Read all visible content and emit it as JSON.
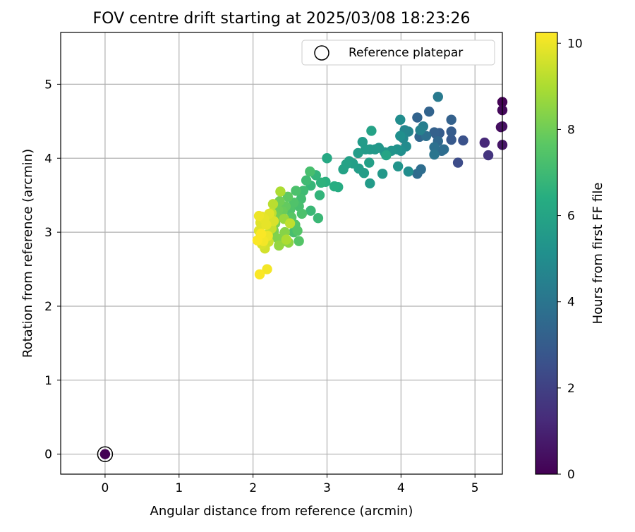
{
  "chart_data": {
    "type": "scatter",
    "title": "FOV centre drift starting at 2025/03/08 18:23:26",
    "xlabel": "Angular distance from reference (arcmin)",
    "ylabel": "Rotation from reference (arcmin)",
    "xlim": [
      -0.6,
      5.37
    ],
    "ylim": [
      -0.27,
      5.7
    ],
    "xticks": [
      "0",
      "1",
      "2",
      "3",
      "4",
      "5"
    ],
    "yticks": [
      "0",
      "1",
      "2",
      "3",
      "4",
      "5"
    ],
    "grid": true,
    "legend": {
      "position": "top-right",
      "label": "Reference platepar"
    },
    "reference_point": {
      "x": 0,
      "y": 0,
      "c": 0
    },
    "colorbar": {
      "label": "Hours from first FF file",
      "range": [
        0,
        10.25
      ],
      "ticks": [
        "0",
        "2",
        "4",
        "6",
        "8",
        "10"
      ],
      "colormap": "viridis"
    },
    "points": [
      [
        5.37,
        4.76,
        0.05
      ],
      [
        5.37,
        4.65,
        0.2
      ],
      [
        5.35,
        4.42,
        0.35
      ],
      [
        5.37,
        4.43,
        0.45
      ],
      [
        5.37,
        4.18,
        0.6
      ],
      [
        5.13,
        4.21,
        1.2
      ],
      [
        5.18,
        4.04,
        1.6
      ],
      [
        4.77,
        3.94,
        2.4
      ],
      [
        4.84,
        4.24,
        2.6
      ],
      [
        4.68,
        4.25,
        2.9
      ],
      [
        4.68,
        4.36,
        3.0
      ],
      [
        4.68,
        4.52,
        3.2
      ],
      [
        4.52,
        4.34,
        3.0
      ],
      [
        4.48,
        4.32,
        3.1
      ],
      [
        4.45,
        4.35,
        3.2
      ],
      [
        4.38,
        4.63,
        3.3
      ],
      [
        4.22,
        4.55,
        3.3
      ],
      [
        4.25,
        4.29,
        3.4
      ],
      [
        4.5,
        4.23,
        3.5
      ],
      [
        4.55,
        4.1,
        3.6
      ],
      [
        4.58,
        4.12,
        3.7
      ],
      [
        4.22,
        3.79,
        3.6
      ],
      [
        4.27,
        3.85,
        3.7
      ],
      [
        4.34,
        4.3,
        3.8
      ],
      [
        4.45,
        4.15,
        3.8
      ],
      [
        4.45,
        4.05,
        4.0
      ],
      [
        4.5,
        4.83,
        4.2
      ],
      [
        4.3,
        4.43,
        4.4
      ],
      [
        4.26,
        4.38,
        4.5
      ],
      [
        4.1,
        4.36,
        4.6
      ],
      [
        4.05,
        4.38,
        4.7
      ],
      [
        4.03,
        4.27,
        4.8
      ],
      [
        4.07,
        4.16,
        4.9
      ],
      [
        4.1,
        3.82,
        5.0
      ],
      [
        3.99,
        4.52,
        5.0
      ],
      [
        3.99,
        4.3,
        5.1
      ],
      [
        4.0,
        4.1,
        5.1
      ],
      [
        3.95,
        4.12,
        5.2
      ],
      [
        3.96,
        3.89,
        5.3
      ],
      [
        3.87,
        4.1,
        5.3
      ],
      [
        3.78,
        4.08,
        5.4
      ],
      [
        3.7,
        4.14,
        5.4
      ],
      [
        3.65,
        4.12,
        5.5
      ],
      [
        3.58,
        4.12,
        5.5
      ],
      [
        3.52,
        4.12,
        5.6
      ],
      [
        3.48,
        4.22,
        5.6
      ],
      [
        3.42,
        4.07,
        5.7
      ],
      [
        3.43,
        3.86,
        5.7
      ],
      [
        3.35,
        3.93,
        5.8
      ],
      [
        3.3,
        3.96,
        5.8
      ],
      [
        3.26,
        3.92,
        5.9
      ],
      [
        3.22,
        3.85,
        5.9
      ],
      [
        3.6,
        4.37,
        5.9
      ],
      [
        3.58,
        3.66,
        5.6
      ],
      [
        3.75,
        3.79,
        5.5
      ],
      [
        3.8,
        4.04,
        6.0
      ],
      [
        3.57,
        3.94,
        5.8
      ],
      [
        3.5,
        3.8,
        5.7
      ],
      [
        3.0,
        4.0,
        6.2
      ],
      [
        3.15,
        3.61,
        6.3
      ],
      [
        3.1,
        3.62,
        6.4
      ],
      [
        2.98,
        3.68,
        6.5
      ],
      [
        2.92,
        3.67,
        6.6
      ],
      [
        2.9,
        3.5,
        6.7
      ],
      [
        2.85,
        3.77,
        6.7
      ],
      [
        2.78,
        3.63,
        6.8
      ],
      [
        2.78,
        3.29,
        6.9
      ],
      [
        2.88,
        3.19,
        6.9
      ],
      [
        2.77,
        3.82,
        7.2
      ],
      [
        2.72,
        3.7,
        7.0
      ],
      [
        2.68,
        3.56,
        7.0
      ],
      [
        2.65,
        3.45,
        7.1
      ],
      [
        2.62,
        3.35,
        7.2
      ],
      [
        2.66,
        3.25,
        7.3
      ],
      [
        2.58,
        3.56,
        7.3
      ],
      [
        2.55,
        3.4,
        7.4
      ],
      [
        2.5,
        3.3,
        7.4
      ],
      [
        2.57,
        3.1,
        7.5
      ],
      [
        2.6,
        3.02,
        7.5
      ],
      [
        2.62,
        2.88,
        7.5
      ],
      [
        2.52,
        3.2,
        7.6
      ],
      [
        2.47,
        3.48,
        7.7
      ],
      [
        2.44,
        3.35,
        7.8
      ],
      [
        2.4,
        3.28,
        7.9
      ],
      [
        2.36,
        3.42,
        8.0
      ],
      [
        2.34,
        3.3,
        8.0
      ],
      [
        2.32,
        3.2,
        8.1
      ],
      [
        2.3,
        3.12,
        8.2
      ],
      [
        2.28,
        3.02,
        8.2
      ],
      [
        2.33,
        2.92,
        8.3
      ],
      [
        2.39,
        2.87,
        8.3
      ],
      [
        2.43,
        3.0,
        8.4
      ],
      [
        2.48,
        2.86,
        8.5
      ],
      [
        2.35,
        2.82,
        8.6
      ],
      [
        2.42,
        3.18,
        8.7
      ],
      [
        2.37,
        3.55,
        9.0
      ],
      [
        2.27,
        3.38,
        9.2
      ],
      [
        2.25,
        3.26,
        9.3
      ],
      [
        2.25,
        3.05,
        9.4
      ],
      [
        2.2,
        2.97,
        9.4
      ],
      [
        2.21,
        2.87,
        9.5
      ],
      [
        2.16,
        2.78,
        9.6
      ],
      [
        2.12,
        2.84,
        9.7
      ],
      [
        2.1,
        2.93,
        9.7
      ],
      [
        2.08,
        3.02,
        9.8
      ],
      [
        2.1,
        3.13,
        9.8
      ],
      [
        2.12,
        3.21,
        9.9
      ],
      [
        2.08,
        3.22,
        10.0
      ],
      [
        2.15,
        3.18,
        9.9
      ],
      [
        2.18,
        3.1,
        9.9
      ],
      [
        2.22,
        3.25,
        9.8
      ],
      [
        2.28,
        3.15,
        9.7
      ],
      [
        2.2,
        2.95,
        10.0
      ],
      [
        2.14,
        2.88,
        10.1
      ],
      [
        2.11,
        2.98,
        10.2
      ],
      [
        2.06,
        2.89,
        10.2
      ],
      [
        2.09,
        2.43,
        10.2
      ],
      [
        2.19,
        2.5,
        10.1
      ],
      [
        2.5,
        3.12,
        9.3
      ],
      [
        2.45,
        2.9,
        9.0
      ],
      [
        2.55,
        3.0,
        7.2
      ]
    ]
  }
}
